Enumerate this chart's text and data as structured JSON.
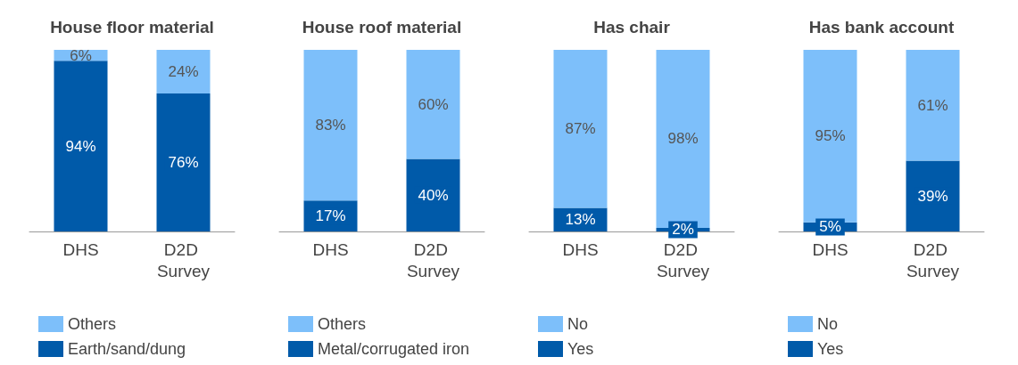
{
  "chart_data": [
    {
      "type": "bar",
      "title": "House floor material",
      "categories": [
        "DHS",
        "D2D Survey"
      ],
      "stacked": true,
      "ylim": [
        0,
        100
      ],
      "tick_labels": "x",
      "legend": "bottom",
      "series": [
        {
          "name": "Earth/sand/dung",
          "color": "#005aa9",
          "values": [
            94,
            76
          ],
          "value_labels": [
            "94%",
            "76%"
          ]
        },
        {
          "name": "Others",
          "color": "#7dbffa",
          "values": [
            6,
            24
          ],
          "value_labels": [
            "6%",
            "24%"
          ]
        }
      ]
    },
    {
      "type": "bar",
      "title": "House roof material",
      "categories": [
        "DHS",
        "D2D Survey"
      ],
      "stacked": true,
      "ylim": [
        0,
        100
      ],
      "tick_labels": "x",
      "legend": "bottom",
      "series": [
        {
          "name": "Metal/corrugated iron",
          "color": "#005aa9",
          "values": [
            17,
            40
          ],
          "value_labels": [
            "17%",
            "40%"
          ]
        },
        {
          "name": "Others",
          "color": "#7dbffa",
          "values": [
            83,
            60
          ],
          "value_labels": [
            "83%",
            "60%"
          ]
        }
      ]
    },
    {
      "type": "bar",
      "title": "Has chair",
      "categories": [
        "DHS",
        "D2D Survey"
      ],
      "stacked": true,
      "ylim": [
        0,
        100
      ],
      "tick_labels": "x",
      "legend": "bottom",
      "series": [
        {
          "name": "Yes",
          "color": "#005aa9",
          "values": [
            13,
            2
          ],
          "value_labels": [
            "13%",
            "2%"
          ]
        },
        {
          "name": "No",
          "color": "#7dbffa",
          "values": [
            87,
            98
          ],
          "value_labels": [
            "87%",
            "98%"
          ]
        }
      ]
    },
    {
      "type": "bar",
      "title": "Has bank account",
      "categories": [
        "DHS",
        "D2D Survey"
      ],
      "stacked": true,
      "ylim": [
        0,
        100
      ],
      "tick_labels": "x",
      "legend": "bottom",
      "series": [
        {
          "name": "Yes",
          "color": "#005aa9",
          "values": [
            5,
            39
          ],
          "value_labels": [
            "5%",
            "39%"
          ]
        },
        {
          "name": "No",
          "color": "#7dbffa",
          "values": [
            95,
            61
          ],
          "value_labels": [
            "95%",
            "61%"
          ]
        }
      ]
    }
  ]
}
